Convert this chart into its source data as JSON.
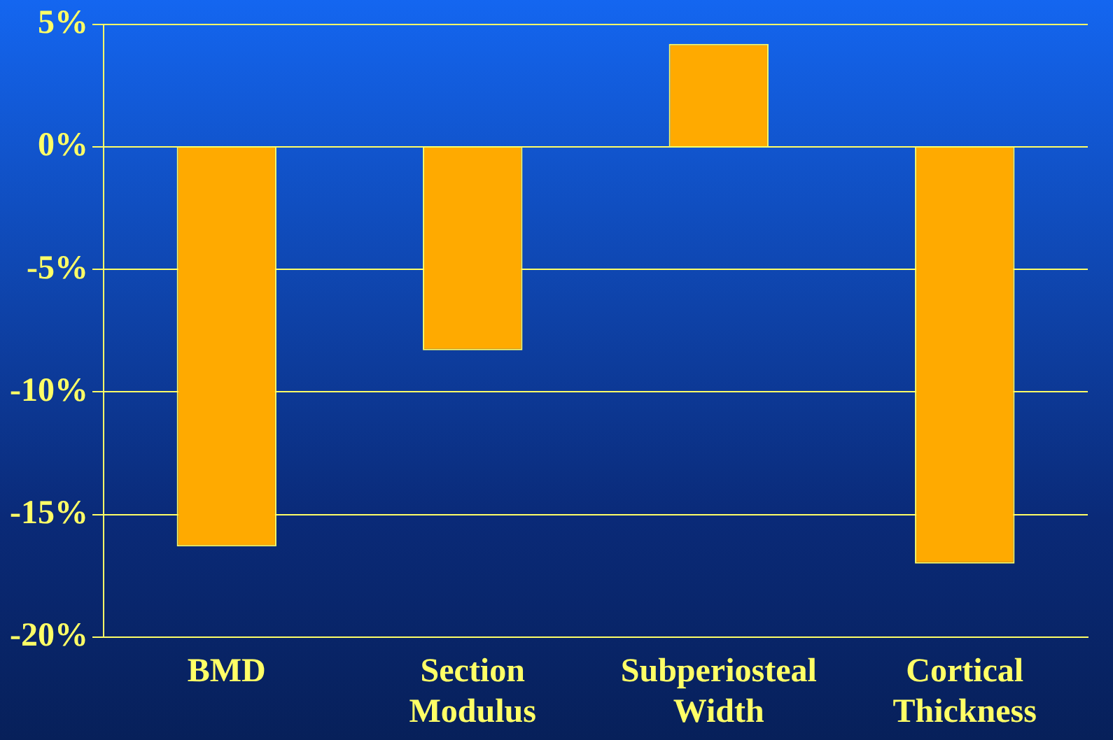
{
  "chart_data": {
    "type": "bar",
    "categories": [
      "BMD",
      "Section Modulus",
      "Subperiosteal Width",
      "Cortical Thickness"
    ],
    "values": [
      -16.3,
      -8.3,
      4.2,
      -17.0
    ],
    "color": "#ffaa00",
    "ylim": [
      -20,
      5
    ],
    "yticks": [
      {
        "value": 5,
        "label": "5%"
      },
      {
        "value": 0,
        "label": "0%"
      },
      {
        "value": -5,
        "label": "-5%"
      },
      {
        "value": -10,
        "label": "-10%"
      },
      {
        "value": -15,
        "label": "-15%"
      },
      {
        "value": -20,
        "label": "-20%"
      }
    ],
    "grid": "y",
    "legend": false
  }
}
